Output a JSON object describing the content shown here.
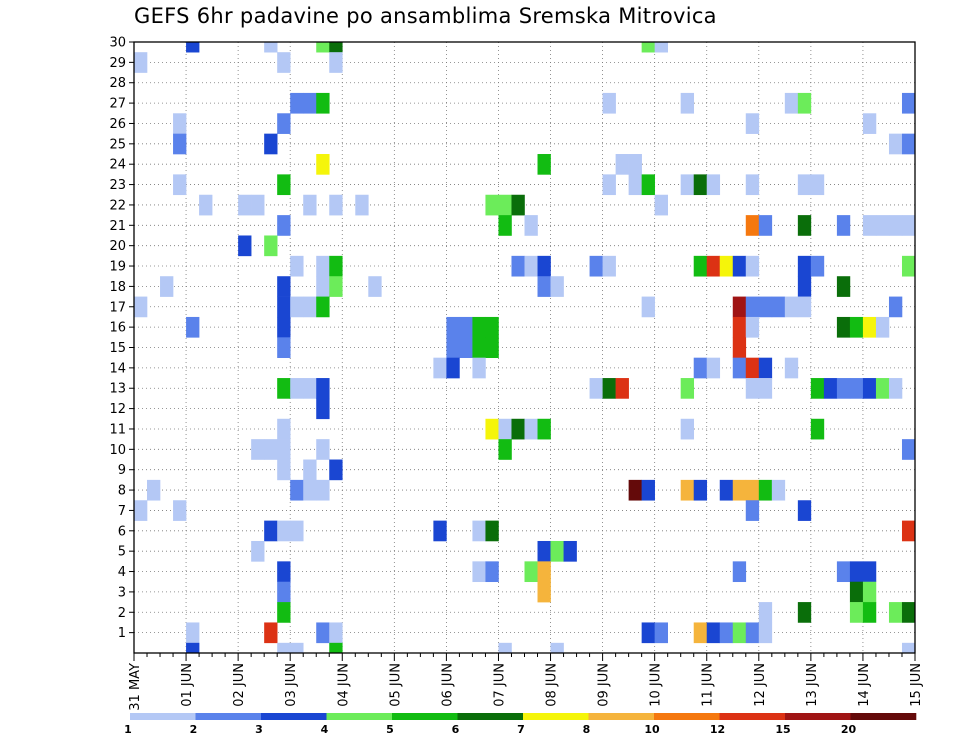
{
  "chart_data": {
    "type": "heatmap",
    "title": "GEFS 6hr padavine po ansamblima Sremska Mitrovica",
    "xlabel": "",
    "ylabel": "",
    "x_ticks": [
      "31 MAY",
      "01 JUN",
      "02 JUN",
      "03 JUN",
      "04 JUN",
      "05 JUN",
      "06 JUN",
      "07 JUN",
      "08 JUN",
      "09 JUN",
      "10 JUN",
      "11 JUN",
      "12 JUN",
      "13 JUN",
      "14 JUN",
      "15 JUN"
    ],
    "x_range_days": [
      0,
      15
    ],
    "y_ticks": [
      1,
      2,
      3,
      4,
      5,
      6,
      7,
      8,
      9,
      10,
      11,
      12,
      13,
      14,
      15,
      16,
      17,
      18,
      19,
      20,
      21,
      22,
      23,
      24,
      25,
      26,
      27,
      28,
      29,
      30
    ],
    "y_range": [
      0,
      30
    ],
    "grid": true,
    "colorbar": {
      "labels": [
        "1",
        "2",
        "3",
        "4",
        "5",
        "6",
        "7",
        "8",
        "10",
        "12",
        "15",
        "20"
      ],
      "colors": [
        "#b4c8f5",
        "#5a82eb",
        "#1a46d2",
        "#6cec5a",
        "#12bc12",
        "#0a6e0a",
        "#f5f50a",
        "#f5b43c",
        "#f5780f",
        "#dc3214",
        "#a01414",
        "#640a0a"
      ]
    },
    "cells": [
      [
        30,
        1.0,
        3
      ],
      [
        30,
        2.5,
        1
      ],
      [
        30,
        3.5,
        4
      ],
      [
        30,
        3.75,
        6
      ],
      [
        30,
        9.75,
        4
      ],
      [
        30,
        10.0,
        1
      ],
      [
        29,
        0.0,
        1
      ],
      [
        29,
        2.75,
        1
      ],
      [
        29,
        3.75,
        1
      ],
      [
        27,
        3.0,
        2
      ],
      [
        27,
        3.25,
        2
      ],
      [
        27,
        3.5,
        5
      ],
      [
        27,
        9.0,
        1
      ],
      [
        27,
        10.5,
        1
      ],
      [
        27,
        12.5,
        1
      ],
      [
        27,
        12.75,
        4
      ],
      [
        27,
        14.75,
        2
      ],
      [
        26,
        0.75,
        1
      ],
      [
        26,
        2.75,
        2
      ],
      [
        26,
        11.75,
        1
      ],
      [
        26,
        14.0,
        1
      ],
      [
        25,
        0.75,
        2
      ],
      [
        25,
        2.5,
        3
      ],
      [
        25,
        14.5,
        1
      ],
      [
        25,
        14.75,
        2
      ],
      [
        24,
        3.5,
        7
      ],
      [
        24,
        7.75,
        5
      ],
      [
        24,
        9.25,
        1
      ],
      [
        24,
        9.5,
        1
      ],
      [
        23,
        0.75,
        1
      ],
      [
        23,
        2.75,
        5
      ],
      [
        23,
        9.0,
        1
      ],
      [
        23,
        9.5,
        1
      ],
      [
        23,
        9.75,
        5
      ],
      [
        23,
        10.5,
        1
      ],
      [
        23,
        10.75,
        6
      ],
      [
        23,
        11.0,
        1
      ],
      [
        23,
        11.75,
        1
      ],
      [
        23,
        12.75,
        1
      ],
      [
        23,
        13.0,
        1
      ],
      [
        22,
        1.25,
        1
      ],
      [
        22,
        2.0,
        1
      ],
      [
        22,
        2.25,
        1
      ],
      [
        22,
        3.25,
        1
      ],
      [
        22,
        3.75,
        1
      ],
      [
        22,
        4.25,
        1
      ],
      [
        22,
        6.75,
        4
      ],
      [
        22,
        7.0,
        4
      ],
      [
        22,
        7.25,
        6
      ],
      [
        22,
        10.0,
        1
      ],
      [
        21,
        2.75,
        2
      ],
      [
        21,
        7.0,
        5
      ],
      [
        21,
        7.5,
        1
      ],
      [
        21,
        11.75,
        9
      ],
      [
        21,
        12.0,
        2
      ],
      [
        21,
        12.75,
        6
      ],
      [
        21,
        13.5,
        2
      ],
      [
        21,
        14.0,
        1
      ],
      [
        21,
        14.25,
        1
      ],
      [
        21,
        14.5,
        1
      ],
      [
        21,
        14.75,
        1
      ],
      [
        20,
        2.0,
        3
      ],
      [
        20,
        2.5,
        4
      ],
      [
        19,
        3.0,
        1
      ],
      [
        19,
        3.5,
        1
      ],
      [
        19,
        3.75,
        5
      ],
      [
        19,
        7.25,
        2
      ],
      [
        19,
        7.5,
        1
      ],
      [
        19,
        7.75,
        3
      ],
      [
        19,
        8.75,
        2
      ],
      [
        19,
        9.0,
        1
      ],
      [
        19,
        10.75,
        5
      ],
      [
        19,
        11.0,
        10
      ],
      [
        19,
        11.25,
        7
      ],
      [
        19,
        11.5,
        3
      ],
      [
        19,
        11.75,
        1
      ],
      [
        19,
        12.75,
        3
      ],
      [
        19,
        13.0,
        2
      ],
      [
        19,
        14.75,
        4
      ],
      [
        18,
        0.5,
        1
      ],
      [
        18,
        2.75,
        3
      ],
      [
        18,
        3.5,
        1
      ],
      [
        18,
        3.75,
        4
      ],
      [
        18,
        4.5,
        1
      ],
      [
        18,
        7.75,
        2
      ],
      [
        18,
        8.0,
        1
      ],
      [
        18,
        12.75,
        3
      ],
      [
        18,
        13.5,
        6
      ],
      [
        17,
        0.0,
        1
      ],
      [
        17,
        2.75,
        3
      ],
      [
        17,
        3.0,
        1
      ],
      [
        17,
        3.25,
        1
      ],
      [
        17,
        3.5,
        5
      ],
      [
        17,
        9.75,
        1
      ],
      [
        17,
        11.5,
        11
      ],
      [
        17,
        11.75,
        2
      ],
      [
        17,
        12.0,
        2
      ],
      [
        17,
        12.25,
        2
      ],
      [
        17,
        12.5,
        1
      ],
      [
        17,
        12.75,
        1
      ],
      [
        17,
        14.5,
        2
      ],
      [
        16,
        1.0,
        2
      ],
      [
        16,
        2.75,
        3
      ],
      [
        16,
        6.0,
        2
      ],
      [
        16,
        6.25,
        2
      ],
      [
        16,
        6.5,
        5
      ],
      [
        16,
        6.75,
        5
      ],
      [
        16,
        11.5,
        10
      ],
      [
        16,
        11.75,
        1
      ],
      [
        16,
        13.5,
        6
      ],
      [
        16,
        13.75,
        5
      ],
      [
        16,
        14.0,
        7
      ],
      [
        16,
        14.25,
        1
      ],
      [
        15,
        2.75,
        2
      ],
      [
        15,
        6.0,
        2
      ],
      [
        15,
        6.25,
        2
      ],
      [
        15,
        6.5,
        5
      ],
      [
        15,
        6.75,
        5
      ],
      [
        15,
        11.5,
        10
      ],
      [
        14,
        5.75,
        1
      ],
      [
        14,
        6.0,
        3
      ],
      [
        14,
        6.5,
        1
      ],
      [
        14,
        10.75,
        2
      ],
      [
        14,
        11.0,
        1
      ],
      [
        14,
        11.5,
        2
      ],
      [
        14,
        11.75,
        10
      ],
      [
        14,
        12.0,
        3
      ],
      [
        14,
        12.5,
        1
      ],
      [
        13,
        2.75,
        5
      ],
      [
        13,
        3.0,
        1
      ],
      [
        13,
        3.25,
        1
      ],
      [
        13,
        3.5,
        3
      ],
      [
        13,
        8.75,
        1
      ],
      [
        13,
        9.0,
        6
      ],
      [
        13,
        9.25,
        10
      ],
      [
        13,
        10.5,
        4
      ],
      [
        13,
        11.75,
        1
      ],
      [
        13,
        12.0,
        1
      ],
      [
        13,
        13.0,
        5
      ],
      [
        13,
        13.25,
        3
      ],
      [
        13,
        13.5,
        2
      ],
      [
        13,
        13.75,
        2
      ],
      [
        13,
        14.0,
        3
      ],
      [
        13,
        14.25,
        4
      ],
      [
        13,
        14.5,
        1
      ],
      [
        12,
        3.5,
        3
      ],
      [
        11,
        2.75,
        1
      ],
      [
        11,
        6.75,
        7
      ],
      [
        11,
        7.0,
        1
      ],
      [
        11,
        7.25,
        6
      ],
      [
        11,
        7.5,
        1
      ],
      [
        11,
        7.75,
        5
      ],
      [
        11,
        10.5,
        1
      ],
      [
        11,
        13.0,
        5
      ],
      [
        10,
        2.25,
        1
      ],
      [
        10,
        2.5,
        1
      ],
      [
        10,
        2.75,
        1
      ],
      [
        10,
        3.5,
        1
      ],
      [
        10,
        7.0,
        5
      ],
      [
        10,
        14.75,
        2
      ],
      [
        9,
        2.75,
        1
      ],
      [
        9,
        3.25,
        1
      ],
      [
        9,
        3.75,
        3
      ],
      [
        8,
        0.25,
        1
      ],
      [
        8,
        3.0,
        2
      ],
      [
        8,
        3.25,
        1
      ],
      [
        8,
        3.5,
        1
      ],
      [
        8,
        9.5,
        12
      ],
      [
        8,
        9.75,
        3
      ],
      [
        8,
        10.5,
        8
      ],
      [
        8,
        10.75,
        3
      ],
      [
        8,
        11.25,
        3
      ],
      [
        8,
        11.5,
        8
      ],
      [
        8,
        11.75,
        8
      ],
      [
        8,
        12.0,
        5
      ],
      [
        8,
        12.25,
        1
      ],
      [
        7,
        0.0,
        1
      ],
      [
        7,
        0.75,
        1
      ],
      [
        7,
        11.75,
        2
      ],
      [
        7,
        12.75,
        3
      ],
      [
        6,
        2.5,
        3
      ],
      [
        6,
        2.75,
        1
      ],
      [
        6,
        3.0,
        1
      ],
      [
        6,
        5.75,
        3
      ],
      [
        6,
        6.5,
        1
      ],
      [
        6,
        6.75,
        6
      ],
      [
        6,
        14.75,
        10
      ],
      [
        5,
        2.25,
        1
      ],
      [
        5,
        7.75,
        3
      ],
      [
        5,
        8.0,
        4
      ],
      [
        5,
        8.25,
        3
      ],
      [
        4,
        2.75,
        3
      ],
      [
        4,
        6.5,
        1
      ],
      [
        4,
        6.75,
        2
      ],
      [
        4,
        7.5,
        4
      ],
      [
        4,
        7.75,
        8
      ],
      [
        4,
        11.5,
        2
      ],
      [
        4,
        13.5,
        2
      ],
      [
        4,
        13.75,
        3
      ],
      [
        4,
        14.0,
        3
      ],
      [
        3,
        2.75,
        2
      ],
      [
        3,
        7.75,
        8
      ],
      [
        3,
        13.75,
        6
      ],
      [
        3,
        14.0,
        4
      ],
      [
        2,
        2.75,
        5
      ],
      [
        2,
        12.0,
        1
      ],
      [
        2,
        12.75,
        6
      ],
      [
        2,
        13.75,
        4
      ],
      [
        2,
        14.0,
        5
      ],
      [
        2,
        14.5,
        4
      ],
      [
        2,
        14.75,
        6
      ],
      [
        1,
        1.0,
        1
      ],
      [
        1,
        2.5,
        10
      ],
      [
        1,
        3.5,
        2
      ],
      [
        1,
        3.75,
        1
      ],
      [
        1,
        9.75,
        3
      ],
      [
        1,
        10.0,
        2
      ],
      [
        1,
        10.75,
        8
      ],
      [
        1,
        11.0,
        3
      ],
      [
        1,
        11.25,
        2
      ],
      [
        1,
        11.5,
        4
      ],
      [
        1,
        11.75,
        2
      ],
      [
        1,
        12.0,
        1
      ],
      [
        0,
        1.0,
        3
      ],
      [
        0,
        2.75,
        1
      ],
      [
        0,
        3.0,
        1
      ],
      [
        0,
        3.75,
        5
      ],
      [
        0,
        7.0,
        1
      ],
      [
        0,
        8.0,
        1
      ],
      [
        0,
        14.75,
        1
      ]
    ]
  }
}
